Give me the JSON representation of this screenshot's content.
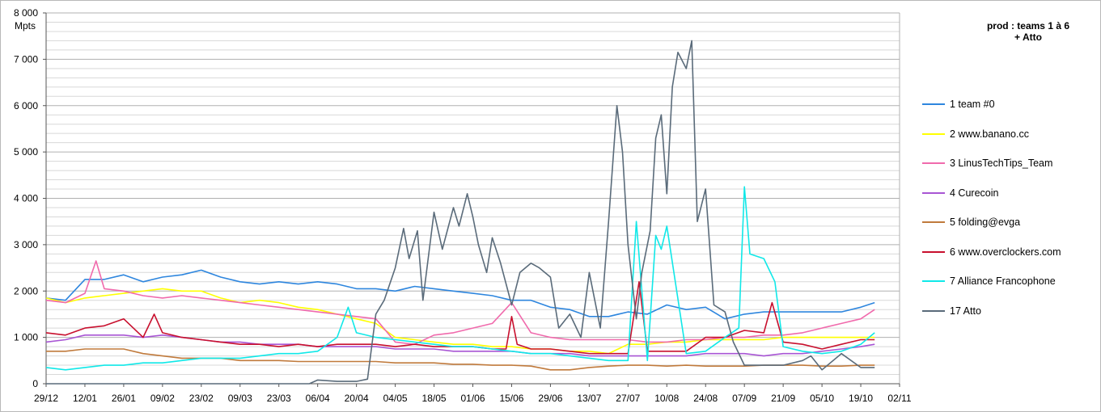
{
  "chart_data": {
    "type": "line",
    "title": [
      "prod : teams 1 à 6",
      "+ Atto"
    ],
    "ylabel": "Mpts",
    "ylim": [
      0,
      8000
    ],
    "yticks": [
      0,
      1000,
      2000,
      3000,
      4000,
      5000,
      6000,
      7000,
      8000
    ],
    "ytick_labels": [
      "0",
      "1 000",
      "2 000",
      "3 000",
      "4 000",
      "5 000",
      "6 000",
      "7 000",
      "8 000"
    ],
    "grid": true,
    "legend_position": "right",
    "x_start": "29/12",
    "x_end": "02/11",
    "x_interval_days": 14,
    "xtick_labels": [
      "29/12",
      "12/01",
      "26/01",
      "09/02",
      "23/02",
      "09/03",
      "23/03",
      "06/04",
      "20/04",
      "04/05",
      "18/05",
      "01/06",
      "15/06",
      "29/06",
      "13/07",
      "27/07",
      "10/08",
      "24/08",
      "07/09",
      "21/09",
      "05/10",
      "19/10",
      "02/11"
    ],
    "series": [
      {
        "name": "1 team #0",
        "color": "#2e86de",
        "x": [
          "29/12",
          "05/01",
          "12/01",
          "19/01",
          "26/01",
          "02/02",
          "09/02",
          "16/02",
          "23/02",
          "02/03",
          "09/03",
          "16/03",
          "23/03",
          "30/03",
          "06/04",
          "13/04",
          "20/04",
          "27/04",
          "04/05",
          "11/05",
          "18/05",
          "25/05",
          "01/06",
          "08/06",
          "15/06",
          "22/06",
          "29/06",
          "06/07",
          "13/07",
          "20/07",
          "27/07",
          "03/08",
          "10/08",
          "17/08",
          "24/08",
          "31/08",
          "07/09",
          "14/09",
          "21/09",
          "28/09",
          "05/10",
          "12/10",
          "19/10",
          "24/10"
        ],
        "values": [
          1850,
          1800,
          2250,
          2250,
          2350,
          2200,
          2300,
          2350,
          2450,
          2300,
          2200,
          2150,
          2200,
          2150,
          2200,
          2150,
          2050,
          2050,
          2000,
          2100,
          2050,
          2000,
          1950,
          1900,
          1800,
          1800,
          1650,
          1600,
          1450,
          1450,
          1550,
          1500,
          1700,
          1600,
          1650,
          1400,
          1500,
          1550,
          1550,
          1550,
          1550,
          1550,
          1650,
          1750
        ]
      },
      {
        "name": "2 www.banano.cc",
        "color": "#ffff00",
        "x": [
          "29/12",
          "05/01",
          "12/01",
          "19/01",
          "26/01",
          "02/02",
          "09/02",
          "16/02",
          "23/02",
          "02/03",
          "09/03",
          "16/03",
          "23/03",
          "30/03",
          "06/04",
          "13/04",
          "20/04",
          "27/04",
          "04/05",
          "11/05",
          "18/05",
          "25/05",
          "01/06",
          "08/06",
          "15/06",
          "22/06",
          "29/06",
          "06/07",
          "13/07",
          "20/07",
          "27/07",
          "03/08",
          "10/08",
          "17/08",
          "24/08",
          "31/08",
          "07/09",
          "14/09",
          "21/09",
          "28/09",
          "05/10",
          "12/10",
          "19/10",
          "24/10"
        ],
        "values": [
          1850,
          1750,
          1850,
          1900,
          1950,
          2000,
          2050,
          2000,
          2000,
          1850,
          1750,
          1800,
          1750,
          1650,
          1600,
          1500,
          1400,
          1300,
          1000,
          950,
          900,
          850,
          850,
          800,
          800,
          750,
          750,
          700,
          700,
          650,
          850,
          850,
          900,
          900,
          950,
          950,
          950,
          950,
          1000,
          1000,
          1000,
          1000,
          1000,
          1000
        ]
      },
      {
        "name": "3 LinusTechTips_Team",
        "color": "#f06aac",
        "x": [
          "29/12",
          "05/01",
          "12/01",
          "16/01",
          "19/01",
          "26/01",
          "02/02",
          "09/02",
          "16/02",
          "23/02",
          "02/03",
          "09/03",
          "16/03",
          "23/03",
          "30/03",
          "06/04",
          "13/04",
          "20/04",
          "27/04",
          "04/05",
          "11/05",
          "18/05",
          "25/05",
          "01/06",
          "08/06",
          "15/06",
          "22/06",
          "29/06",
          "06/07",
          "13/07",
          "20/07",
          "27/07",
          "03/08",
          "10/08",
          "17/08",
          "24/08",
          "31/08",
          "07/09",
          "14/09",
          "21/09",
          "28/09",
          "05/10",
          "12/10",
          "19/10",
          "24/10"
        ],
        "values": [
          1800,
          1750,
          1950,
          2650,
          2050,
          2000,
          1900,
          1850,
          1900,
          1850,
          1800,
          1750,
          1700,
          1650,
          1600,
          1550,
          1500,
          1450,
          1400,
          900,
          850,
          1050,
          1100,
          1200,
          1300,
          1750,
          1100,
          1000,
          950,
          950,
          950,
          950,
          900,
          900,
          950,
          950,
          1000,
          1000,
          1050,
          1050,
          1100,
          1200,
          1300,
          1400,
          1600
        ]
      },
      {
        "name": "4 Curecoin",
        "color": "#a855d4",
        "x": [
          "29/12",
          "05/01",
          "12/01",
          "19/01",
          "26/01",
          "02/02",
          "09/02",
          "16/02",
          "23/02",
          "02/03",
          "09/03",
          "16/03",
          "23/03",
          "30/03",
          "06/04",
          "13/04",
          "20/04",
          "27/04",
          "04/05",
          "11/05",
          "18/05",
          "25/05",
          "01/06",
          "08/06",
          "15/06",
          "22/06",
          "29/06",
          "06/07",
          "13/07",
          "20/07",
          "27/07",
          "03/08",
          "10/08",
          "17/08",
          "24/08",
          "31/08",
          "07/09",
          "14/09",
          "21/09",
          "28/09",
          "05/10",
          "12/10",
          "19/10",
          "24/10"
        ],
        "values": [
          900,
          950,
          1050,
          1050,
          1050,
          1000,
          1050,
          1000,
          950,
          900,
          900,
          850,
          850,
          850,
          800,
          800,
          800,
          800,
          750,
          750,
          750,
          700,
          700,
          700,
          700,
          650,
          650,
          650,
          600,
          600,
          600,
          600,
          600,
          600,
          650,
          650,
          650,
          600,
          650,
          650,
          700,
          750,
          800,
          850
        ]
      },
      {
        "name": "5 folding@evga",
        "color": "#c07a3c",
        "x": [
          "29/12",
          "05/01",
          "12/01",
          "19/01",
          "26/01",
          "02/02",
          "09/02",
          "16/02",
          "23/02",
          "02/03",
          "09/03",
          "16/03",
          "23/03",
          "30/03",
          "06/04",
          "13/04",
          "20/04",
          "27/04",
          "04/05",
          "11/05",
          "18/05",
          "25/05",
          "01/06",
          "08/06",
          "15/06",
          "22/06",
          "29/06",
          "06/07",
          "13/07",
          "20/07",
          "27/07",
          "03/08",
          "10/08",
          "17/08",
          "24/08",
          "31/08",
          "07/09",
          "14/09",
          "21/09",
          "28/09",
          "05/10",
          "12/10",
          "19/10",
          "24/10"
        ],
        "values": [
          700,
          700,
          750,
          750,
          750,
          650,
          600,
          550,
          550,
          550,
          500,
          500,
          500,
          480,
          480,
          480,
          480,
          480,
          450,
          450,
          450,
          420,
          420,
          400,
          400,
          380,
          300,
          300,
          350,
          380,
          400,
          400,
          380,
          400,
          380,
          380,
          380,
          400,
          400,
          400,
          380,
          380,
          400,
          400
        ]
      },
      {
        "name": "6 www.overclockers.com",
        "color": "#c8102e",
        "x": [
          "29/12",
          "05/01",
          "12/01",
          "19/01",
          "26/01",
          "02/02",
          "06/02",
          "09/02",
          "16/02",
          "23/02",
          "02/03",
          "09/03",
          "16/03",
          "23/03",
          "30/03",
          "06/04",
          "13/04",
          "20/04",
          "27/04",
          "04/05",
          "11/05",
          "18/05",
          "25/05",
          "01/06",
          "08/06",
          "13/06",
          "15/06",
          "17/06",
          "22/06",
          "29/06",
          "06/07",
          "13/07",
          "20/07",
          "27/07",
          "31/07",
          "03/08",
          "10/08",
          "17/08",
          "24/08",
          "31/08",
          "07/09",
          "14/09",
          "17/09",
          "21/09",
          "28/09",
          "05/10",
          "12/10",
          "19/10",
          "24/10"
        ],
        "values": [
          1100,
          1050,
          1200,
          1250,
          1400,
          1000,
          1500,
          1100,
          1000,
          950,
          900,
          850,
          850,
          800,
          850,
          800,
          850,
          850,
          850,
          800,
          850,
          800,
          800,
          800,
          750,
          750,
          1450,
          850,
          750,
          750,
          700,
          650,
          650,
          650,
          2200,
          700,
          700,
          700,
          1000,
          1000,
          1150,
          1100,
          1750,
          900,
          850,
          750,
          850,
          950,
          950
        ]
      },
      {
        "name": "7 Alliance Francophone",
        "color": "#10e8e8",
        "x": [
          "29/12",
          "05/01",
          "12/01",
          "19/01",
          "26/01",
          "02/02",
          "09/02",
          "16/02",
          "23/02",
          "02/03",
          "09/03",
          "16/03",
          "23/03",
          "30/03",
          "06/04",
          "13/04",
          "17/04",
          "20/04",
          "27/04",
          "04/05",
          "11/05",
          "18/05",
          "25/05",
          "01/06",
          "08/06",
          "15/06",
          "22/06",
          "29/06",
          "06/07",
          "13/07",
          "20/07",
          "27/07",
          "30/07",
          "03/08",
          "06/08",
          "08/08",
          "10/08",
          "17/08",
          "24/08",
          "31/08",
          "05/09",
          "07/09",
          "09/09",
          "14/09",
          "18/09",
          "21/09",
          "28/09",
          "05/10",
          "12/10",
          "19/10",
          "24/10"
        ],
        "values": [
          350,
          300,
          350,
          400,
          400,
          450,
          450,
          500,
          550,
          550,
          550,
          600,
          650,
          650,
          700,
          1000,
          1650,
          1100,
          1000,
          950,
          900,
          850,
          800,
          800,
          750,
          700,
          650,
          650,
          600,
          550,
          500,
          500,
          3500,
          500,
          3200,
          2900,
          3400,
          650,
          700,
          1000,
          1200,
          4250,
          2800,
          2700,
          2200,
          800,
          700,
          650,
          700,
          850,
          1100
        ]
      },
      {
        "name": "17 Atto",
        "color": "#5a6b7a",
        "x": [
          "29/12",
          "12/01",
          "26/01",
          "09/02",
          "23/02",
          "09/03",
          "23/03",
          "03/04",
          "06/04",
          "13/04",
          "20/04",
          "24/04",
          "27/04",
          "30/04",
          "04/05",
          "07/05",
          "09/05",
          "12/05",
          "14/05",
          "18/05",
          "21/05",
          "25/05",
          "27/05",
          "30/05",
          "01/06",
          "03/06",
          "06/06",
          "08/06",
          "11/06",
          "15/06",
          "18/06",
          "22/06",
          "25/06",
          "29/06",
          "02/07",
          "06/07",
          "10/07",
          "13/07",
          "17/07",
          "20/07",
          "23/07",
          "25/07",
          "27/07",
          "30/07",
          "01/08",
          "04/08",
          "06/08",
          "08/08",
          "10/08",
          "12/08",
          "14/08",
          "17/08",
          "19/08",
          "21/08",
          "24/08",
          "27/08",
          "31/08",
          "03/09",
          "07/09",
          "14/09",
          "21/09",
          "28/09",
          "01/10",
          "05/10",
          "12/10",
          "19/10",
          "24/10"
        ],
        "values": [
          0,
          0,
          0,
          0,
          0,
          0,
          0,
          0,
          80,
          50,
          50,
          100,
          1500,
          1800,
          2500,
          3350,
          2700,
          3300,
          1800,
          3700,
          2900,
          3800,
          3400,
          4100,
          3600,
          3000,
          2400,
          3150,
          2600,
          1700,
          2400,
          2600,
          2500,
          2300,
          1200,
          1500,
          1000,
          2400,
          1200,
          3500,
          6000,
          5000,
          3000,
          1400,
          2400,
          3300,
          5300,
          5800,
          4100,
          6400,
          7150,
          6800,
          7400,
          3500,
          4200,
          1700,
          1550,
          900,
          400,
          400,
          400,
          500,
          600,
          300,
          650,
          350,
          350
        ]
      }
    ]
  }
}
